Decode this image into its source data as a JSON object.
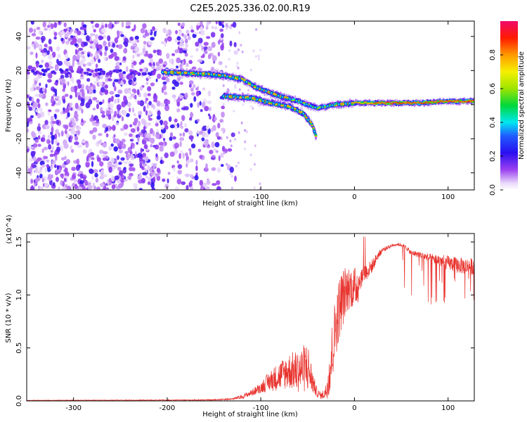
{
  "title": "C2E5.2025.336.02.00.R19",
  "chart_data": [
    {
      "type": "heatmap",
      "xlabel": "Height of straight line (km)",
      "ylabel": "Frequency (Hz)",
      "xlim": [
        -350,
        128
      ],
      "ylim": [
        -50,
        49
      ],
      "xticks": [
        -300,
        -200,
        -100,
        0,
        100
      ],
      "yticks": [
        -40,
        -20,
        0,
        20,
        40
      ],
      "colorbar": {
        "label": "Normalized spectral amplitude",
        "range": [
          0,
          1
        ],
        "ticks": [
          "0.0",
          "0.2",
          "0.4",
          "0.6",
          "0.8"
        ],
        "tick_values": [
          0,
          0.2,
          0.4,
          0.6,
          0.8
        ],
        "colormap": "rainbow"
      },
      "tracks": [
        {
          "points": [
            [
              -205,
              19
            ],
            [
              -160,
              18
            ],
            [
              -140,
              17
            ],
            [
              -120,
              15
            ],
            [
              -105,
              10
            ],
            [
              -80,
              5
            ],
            [
              -60,
              2
            ],
            [
              -40,
              -2
            ],
            [
              -20,
              0
            ],
            [
              0,
              1
            ],
            [
              30,
              1
            ],
            [
              70,
              1
            ],
            [
              100,
              2
            ],
            [
              128,
              2
            ]
          ]
        },
        {
          "points": [
            [
              -140,
              5
            ],
            [
              -110,
              4
            ],
            [
              -90,
              1
            ],
            [
              -70,
              -1
            ],
            [
              -55,
              -5
            ],
            [
              -45,
              -12
            ],
            [
              -40,
              -20
            ]
          ]
        }
      ],
      "noise_region": [
        -350,
        -140
      ]
    },
    {
      "type": "line",
      "xlabel": "Height of straight line (km)",
      "ylabel": "SNR (10 * v/v)",
      "multiplier": "(x10^4)",
      "xlim": [
        -350,
        128
      ],
      "ylim": [
        0,
        1.58
      ],
      "xticks": [
        -300,
        -200,
        -100,
        0,
        100
      ],
      "yticks": [
        0.0,
        0.5,
        1.0,
        1.5
      ],
      "color": "#e8322d",
      "envelope": {
        "x": [
          -350,
          -180,
          -150,
          -130,
          -120,
          -110,
          -100,
          -90,
          -80,
          -70,
          -60,
          -50,
          -45,
          -40,
          -35,
          -30,
          -25,
          -20,
          -15,
          -10,
          -5,
          0,
          5,
          10,
          15,
          20,
          25,
          30,
          35,
          40,
          45,
          50,
          55,
          60,
          70,
          80,
          90,
          100,
          110,
          120,
          128
        ],
        "y": [
          0.005,
          0.008,
          0.01,
          0.02,
          0.04,
          0.08,
          0.13,
          0.2,
          0.25,
          0.3,
          0.3,
          0.35,
          0.2,
          0.08,
          0.05,
          0.1,
          0.4,
          0.75,
          0.95,
          1.05,
          1.1,
          1.08,
          1.15,
          1.22,
          1.25,
          1.3,
          1.38,
          1.43,
          1.45,
          1.47,
          1.48,
          1.47,
          1.45,
          1.4,
          1.38,
          1.35,
          1.33,
          1.3,
          1.28,
          1.27,
          1.27
        ],
        "noise": [
          0.003,
          0.004,
          0.005,
          0.01,
          0.02,
          0.03,
          0.05,
          0.1,
          0.14,
          0.17,
          0.2,
          0.25,
          0.12,
          0.04,
          0.03,
          0.08,
          0.3,
          0.3,
          0.3,
          0.25,
          0.2,
          0.2,
          0.2,
          0.18,
          0.15,
          0.12,
          0.08,
          0.05,
          0.04,
          0.03,
          0.03,
          0.03,
          0.04,
          0.05,
          0.06,
          0.08,
          0.12,
          0.14,
          0.15,
          0.16,
          0.16
        ]
      }
    }
  ]
}
